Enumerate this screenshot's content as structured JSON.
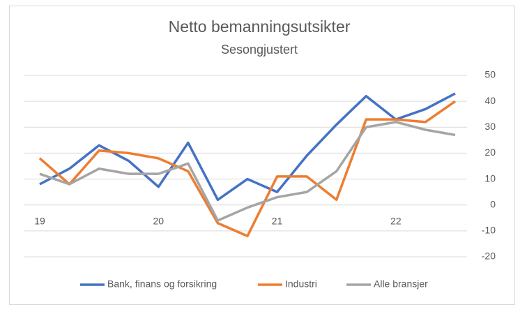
{
  "chart_data": {
    "type": "line",
    "title": "Netto bemanningsutsikter",
    "subtitle": "Sesongjustert",
    "categories": [
      "19",
      null,
      null,
      null,
      "20",
      null,
      null,
      null,
      "21",
      null,
      null,
      null,
      "22",
      null,
      null
    ],
    "series": [
      {
        "name": "Bank, finans og forsikring",
        "color": "#4472c4",
        "values": [
          8,
          14,
          23,
          17,
          7,
          24,
          2,
          10,
          5,
          19,
          31,
          42,
          33,
          37,
          43
        ]
      },
      {
        "name": "Industri",
        "color": "#ed7d31",
        "values": [
          18,
          8,
          21,
          20,
          18,
          13,
          -7,
          -12,
          11,
          11,
          2,
          33,
          33,
          32,
          40
        ]
      },
      {
        "name": "Alle bransjer",
        "color": "#a5a5a5",
        "values": [
          12,
          8,
          14,
          12,
          12,
          16,
          -6,
          -1,
          3,
          5,
          13,
          30,
          32,
          29,
          27
        ]
      }
    ],
    "ylim": [
      -20,
      50
    ],
    "yticks": [
      -20,
      -10,
      0,
      10,
      20,
      30,
      40,
      50
    ],
    "grid": true,
    "legend": "bottom"
  }
}
